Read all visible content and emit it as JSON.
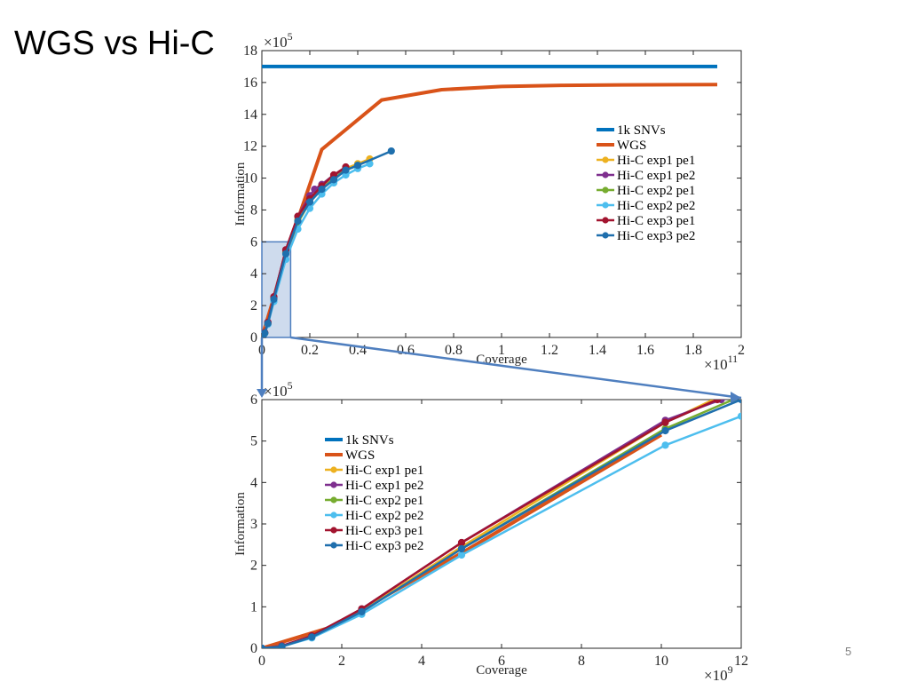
{
  "slide": {
    "title": "WGS vs Hi-C",
    "page_number": "5"
  },
  "colors": {
    "1k SNVs": "#0072bd",
    "WGS": "#d95319",
    "Hi-C exp1 pe1": "#edb120",
    "Hi-C exp1 pe2": "#7e2f8e",
    "Hi-C exp2 pe1": "#77ac30",
    "Hi-C exp2 pe2": "#4dbeee",
    "Hi-C exp3 pe1": "#a2142f",
    "Hi-C exp3 pe2": "#1f6fad",
    "zoom_box": "#4f7fbf"
  },
  "chart_data": [
    {
      "type": "line",
      "id": "top",
      "xlabel": "Coverage",
      "ylabel": "Information",
      "x_exponent": "×10^11",
      "y_exponent": "×10^5",
      "xlim": [
        0,
        2
      ],
      "ylim": [
        0,
        18
      ],
      "x_ticks": [
        0,
        0.2,
        0.4,
        0.6,
        0.8,
        1,
        1.2,
        1.4,
        1.6,
        1.8,
        2
      ],
      "x_tick_labels": [
        "0",
        "0.2",
        "0.4",
        "0.6",
        "0.8",
        "1",
        "1.2",
        "1.4",
        "1.6",
        "1.8",
        "2"
      ],
      "y_ticks": [
        0,
        2,
        4,
        6,
        8,
        10,
        12,
        14,
        16,
        18
      ],
      "y_tick_labels": [
        "0",
        "2",
        "4",
        "6",
        "8",
        "10",
        "12",
        "14",
        "16",
        "18"
      ],
      "legend_position": "right",
      "zoom_region": {
        "x": [
          0,
          0.12
        ],
        "y": [
          0,
          6
        ]
      },
      "series": [
        {
          "name": "1k SNVs",
          "x": [
            0,
            1.9
          ],
          "y": [
            17,
            17
          ],
          "markers": false
        },
        {
          "name": "WGS",
          "x": [
            0,
            0.05,
            0.1,
            0.25,
            0.5,
            0.75,
            1.0,
            1.25,
            1.5,
            1.9
          ],
          "y": [
            0,
            2.5,
            5.2,
            11.8,
            14.9,
            15.55,
            15.75,
            15.82,
            15.85,
            15.87
          ],
          "markers": false
        },
        {
          "name": "Hi-C exp1 pe1",
          "x": [
            0,
            0.005,
            0.012,
            0.025,
            0.05,
            0.1,
            0.15,
            0.2,
            0.25,
            0.3,
            0.35,
            0.4,
            0.45
          ],
          "y": [
            0,
            0.05,
            0.28,
            0.9,
            2.5,
            5.4,
            7.4,
            8.8,
            9.6,
            10.2,
            10.6,
            10.9,
            11.2
          ],
          "markers": true
        },
        {
          "name": "Hi-C exp1 pe2",
          "x": [
            0,
            0.005,
            0.012,
            0.025,
            0.05,
            0.1,
            0.15,
            0.2,
            0.22,
            0.25,
            0.3,
            0.35
          ],
          "y": [
            0,
            0.06,
            0.3,
            0.95,
            2.55,
            5.5,
            7.6,
            8.9,
            9.3,
            9.6,
            10.2,
            10.6
          ],
          "markers": true
        },
        {
          "name": "Hi-C exp2 pe1",
          "x": [
            0,
            0.005,
            0.012,
            0.025,
            0.05,
            0.1,
            0.15,
            0.2,
            0.25,
            0.3,
            0.35,
            0.4
          ],
          "y": [
            0,
            0.05,
            0.27,
            0.88,
            2.45,
            5.3,
            7.2,
            8.5,
            9.3,
            10.0,
            10.5,
            10.8
          ],
          "markers": true
        },
        {
          "name": "Hi-C exp2 pe2",
          "x": [
            0,
            0.005,
            0.012,
            0.025,
            0.05,
            0.1,
            0.15,
            0.2,
            0.25,
            0.3,
            0.35,
            0.4,
            0.45
          ],
          "y": [
            0,
            0.04,
            0.25,
            0.82,
            2.25,
            4.9,
            6.8,
            8.1,
            9.0,
            9.7,
            10.2,
            10.6,
            10.9
          ],
          "markers": true
        },
        {
          "name": "Hi-C exp3 pe1",
          "x": [
            0,
            0.005,
            0.012,
            0.025,
            0.05,
            0.1,
            0.15,
            0.2,
            0.25,
            0.3,
            0.35
          ],
          "y": [
            0,
            0.05,
            0.3,
            0.95,
            2.55,
            5.5,
            7.6,
            8.7,
            9.5,
            10.2,
            10.7
          ],
          "markers": true
        },
        {
          "name": "Hi-C exp3 pe2",
          "x": [
            0,
            0.005,
            0.012,
            0.025,
            0.05,
            0.1,
            0.15,
            0.2,
            0.25,
            0.3,
            0.35,
            0.4,
            0.54
          ],
          "y": [
            0,
            0.04,
            0.27,
            0.88,
            2.4,
            5.25,
            7.3,
            8.5,
            9.3,
            9.9,
            10.5,
            10.8,
            11.7
          ],
          "markers": true
        }
      ]
    },
    {
      "type": "line",
      "id": "bottom",
      "xlabel": "Coverage",
      "ylabel": "Information",
      "x_exponent": "×10^9",
      "y_exponent": "×10^5",
      "xlim": [
        0,
        12
      ],
      "ylim": [
        0,
        6
      ],
      "x_ticks": [
        0,
        2,
        4,
        6,
        8,
        10,
        12
      ],
      "x_tick_labels": [
        "0",
        "2",
        "4",
        "6",
        "8",
        "10",
        "12"
      ],
      "y_ticks": [
        0,
        1,
        2,
        3,
        4,
        5,
        6
      ],
      "y_tick_labels": [
        "0",
        "1",
        "2",
        "3",
        "4",
        "5",
        "6"
      ],
      "legend_position": "top-left",
      "series": [
        {
          "name": "1k SNVs",
          "x": [],
          "y": [],
          "markers": false
        },
        {
          "name": "WGS",
          "x": [
            0,
            1.7,
            5,
            10
          ],
          "y": [
            0,
            0.5,
            2.3,
            5.15
          ],
          "markers": false
        },
        {
          "name": "Hi-C exp1 pe1",
          "x": [
            0,
            0.5,
            1.25,
            2.5,
            5,
            10.1,
            11.3
          ],
          "y": [
            0,
            0.05,
            0.28,
            0.9,
            2.45,
            5.45,
            6.0
          ],
          "markers": true
        },
        {
          "name": "Hi-C exp1 pe2",
          "x": [
            0,
            0.5,
            1.25,
            2.5,
            5,
            10.1,
            11.5
          ],
          "y": [
            0,
            0.06,
            0.3,
            0.95,
            2.55,
            5.5,
            6.0
          ],
          "markers": true
        },
        {
          "name": "Hi-C exp2 pe1",
          "x": [
            0,
            0.5,
            1.25,
            2.5,
            5,
            10.1,
            11.8
          ],
          "y": [
            0,
            0.05,
            0.27,
            0.88,
            2.4,
            5.3,
            6.0
          ],
          "markers": true
        },
        {
          "name": "Hi-C exp2 pe2",
          "x": [
            0,
            0.5,
            1.25,
            2.5,
            5,
            10.1,
            12
          ],
          "y": [
            0,
            0.04,
            0.25,
            0.82,
            2.25,
            4.9,
            5.6
          ],
          "markers": true
        },
        {
          "name": "Hi-C exp3 pe1",
          "x": [
            0,
            0.5,
            1.25,
            2.5,
            5,
            10.1,
            11.4
          ],
          "y": [
            0,
            0.05,
            0.3,
            0.95,
            2.55,
            5.45,
            6.0
          ],
          "markers": true
        },
        {
          "name": "Hi-C exp3 pe2",
          "x": [
            0,
            0.5,
            1.25,
            2.5,
            5,
            10.1,
            12
          ],
          "y": [
            0,
            0.04,
            0.27,
            0.88,
            2.4,
            5.25,
            6.0
          ],
          "markers": true
        }
      ]
    }
  ]
}
